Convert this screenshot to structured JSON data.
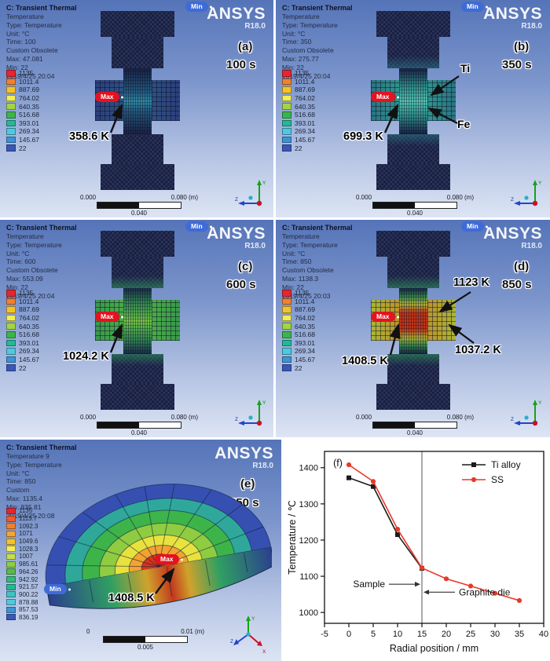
{
  "panels": {
    "a": {
      "header_title": "C: Transient Thermal",
      "header_lines": [
        "Temperature",
        "Type: Temperature",
        "Unit: °C",
        "Time: 100",
        "Custom Obsolete",
        "Max: 47.081",
        "Min: 22",
        "2019/4/25 20:04"
      ],
      "logo": "ANSYS",
      "logo_sub": "R18.0",
      "panel_label": "(a)",
      "time_badge": "100 s",
      "min_tag": "Min",
      "max_tag": "Max",
      "annotation": "358.6 K",
      "legend_values": [
        "1135",
        "1011.4",
        "887.69",
        "764.02",
        "640.35",
        "516.68",
        "393.01",
        "269.34",
        "145.67",
        "22"
      ],
      "legend_colors": [
        "#e6252d",
        "#f2812c",
        "#f5c329",
        "#f3ee53",
        "#a4d343",
        "#3cb44a",
        "#23b995",
        "#52c7dd",
        "#3f93d2",
        "#3a57b5"
      ],
      "scalebar": {
        "start": "0.000",
        "end": "0.080 (m)",
        "mid": "0.040"
      }
    },
    "b": {
      "header_title": "C: Transient Thermal",
      "header_lines": [
        "Temperature",
        "Type: Temperature",
        "Unit: °C",
        "Time: 350",
        "Custom Obsolete",
        "Max: 275.77",
        "Min: 22",
        "2019/4/25 20:04"
      ],
      "logo": "ANSYS",
      "logo_sub": "R18.0",
      "panel_label": "(b)",
      "time_badge": "350 s",
      "min_tag": "Min",
      "max_tag": "Max",
      "annotation": "699.3 K",
      "material_labels": {
        "top": "Ti",
        "bottom": "Fe"
      },
      "legend_values": [
        "1135",
        "1011.4",
        "887.69",
        "764.02",
        "640.35",
        "516.68",
        "393.01",
        "269.34",
        "145.67",
        "22"
      ],
      "legend_colors": [
        "#e6252d",
        "#f2812c",
        "#f5c329",
        "#f3ee53",
        "#a4d343",
        "#3cb44a",
        "#23b995",
        "#52c7dd",
        "#3f93d2",
        "#3a57b5"
      ],
      "scalebar": {
        "start": "0.000",
        "end": "0.080 (m)",
        "mid": "0.040"
      }
    },
    "c": {
      "header_title": "C: Transient Thermal",
      "header_lines": [
        "Temperature",
        "Type: Temperature",
        "Unit: °C",
        "Time: 600",
        "Custom Obsolete",
        "Max: 553.09",
        "Min: 22",
        "2019/4/25 20:04"
      ],
      "logo": "ANSYS",
      "logo_sub": "R18.0",
      "panel_label": "(c)",
      "time_badge": "600 s",
      "min_tag": "Min",
      "max_tag": "Max",
      "annotation": "1024.2 K",
      "legend_values": [
        "1135",
        "1011.4",
        "887.69",
        "764.02",
        "640.35",
        "516.68",
        "393.01",
        "269.34",
        "145.67",
        "22"
      ],
      "legend_colors": [
        "#e6252d",
        "#f2812c",
        "#f5c329",
        "#f3ee53",
        "#a4d343",
        "#3cb44a",
        "#23b995",
        "#52c7dd",
        "#3f93d2",
        "#3a57b5"
      ],
      "scalebar": {
        "start": "0.000",
        "end": "0.080 (m)",
        "mid": "0.040"
      }
    },
    "d": {
      "header_title": "C: Transient Thermal",
      "header_lines": [
        "Temperature",
        "Type: Temperature",
        "Unit: °C",
        "Time: 850",
        "Custom Obsolete",
        "Max: 1138.3",
        "Min: 22",
        "2019/4/25 20:03"
      ],
      "logo": "ANSYS",
      "logo_sub": "R18.0",
      "panel_label": "(d)",
      "time_badge": "850 s",
      "min_tag": "Min",
      "max_tag": "Max",
      "annotation": "1408.5 K",
      "annotation_right_top": "1123 K",
      "annotation_right_bottom": "1037.2 K",
      "legend_values": [
        "1135",
        "1011.4",
        "887.69",
        "764.02",
        "640.35",
        "516.68",
        "393.01",
        "269.34",
        "145.67",
        "22"
      ],
      "legend_colors": [
        "#e6252d",
        "#f2812c",
        "#f5c329",
        "#f3ee53",
        "#a4d343",
        "#3cb44a",
        "#23b995",
        "#52c7dd",
        "#3f93d2",
        "#3a57b5"
      ],
      "scalebar": {
        "start": "0.000",
        "end": "0.080 (m)",
        "mid": "0.040"
      }
    },
    "e": {
      "header_title": "C: Transient Thermal",
      "header_lines": [
        "Temperature 9",
        "Type: Temperature",
        "Unit: °C",
        "Time: 850",
        "Custom",
        "Max: 1135.4",
        "Min: 835.81",
        "2019/4/25 20:08"
      ],
      "logo": "ANSYS",
      "logo_sub": "R18.0",
      "panel_label": "(e)",
      "time_badge": "850 s",
      "min_tag": "Min",
      "max_tag": "Max",
      "annotation": "1408.5 K",
      "legend_values": [
        "1135",
        "1113.7",
        "1092.3",
        "1071",
        "1049.6",
        "1028.3",
        "1007",
        "985.61",
        "964.26",
        "942.92",
        "921.57",
        "900.22",
        "878.88",
        "857.53",
        "836.19"
      ],
      "legend_colors": [
        "#e6252d",
        "#ef5a2a",
        "#f2812c",
        "#f6a42f",
        "#f5c329",
        "#f3ee53",
        "#c4de4a",
        "#8fcc41",
        "#57bc45",
        "#35b977",
        "#23b995",
        "#3fc2c4",
        "#52c7dd",
        "#3f93d2",
        "#3a57b5"
      ],
      "scalebar": {
        "start": "0",
        "end": "0.01 (m)",
        "mid": "0.005"
      }
    }
  },
  "chart_data": {
    "type": "line",
    "panel_label": "(f)",
    "xlabel": "Radial position / mm",
    "ylabel": "Temperature / ℃",
    "xlim": [
      -5,
      40
    ],
    "ylim": [
      970,
      1445
    ],
    "xticks": [
      -5,
      0,
      5,
      10,
      15,
      20,
      25,
      30,
      35,
      40
    ],
    "yticks": [
      1000,
      1100,
      1200,
      1300,
      1400
    ],
    "vline_x": 15,
    "grid": false,
    "legend_position": "top-right",
    "series": [
      {
        "name": "Ti alloy",
        "color": "#1a1a1a",
        "marker": "square",
        "x": [
          0,
          5,
          10,
          15
        ],
        "y": [
          1372,
          1348,
          1215,
          1122
        ]
      },
      {
        "name": "SS",
        "color": "#e8392a",
        "marker": "circle",
        "x": [
          0,
          5,
          10,
          15,
          20,
          25,
          30,
          35
        ],
        "y": [
          1408,
          1362,
          1230,
          1123,
          1093,
          1073,
          1053,
          1033
        ]
      }
    ],
    "annotations": [
      {
        "text": "Sample",
        "x": 15,
        "y": 1078,
        "side": "left"
      },
      {
        "text": "Graphite die",
        "x": 15,
        "y": 1056,
        "side": "right"
      }
    ]
  }
}
